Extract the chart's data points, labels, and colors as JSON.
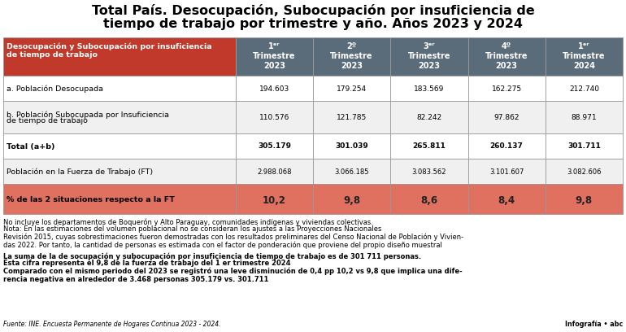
{
  "title_line1": "Total País. Desocupación, Subocupación por insuficiencia de",
  "title_line2": "tiempo de trabajo por trimestre y año. Años 2023 y 2024",
  "col_headers_line1": [
    "1ᵉʳ",
    "2º",
    "3ᵉʳ",
    "4º",
    "1ᵉʳ"
  ],
  "col_headers_line2": [
    "Trimestre",
    "Trimestre",
    "Trimestre",
    "Trimestre",
    "Trimestre"
  ],
  "col_headers_line3": [
    "2023",
    "2023",
    "2023",
    "2023",
    "2024"
  ],
  "row_labels": [
    "Desocupación y Subocupación por insuficiencia\nde tiempo de trabajo",
    "a. Población Desocupada",
    "b. Población Subocupada por Insuficiencia\nde tiempo de trabajo",
    "Total (a+b)",
    "Población en la Fuerza de Trabajo (FT)",
    "% de las 2 situaciones respecto a la FT"
  ],
  "data": [
    [
      "194.603",
      "179.254",
      "183.569",
      "162.275",
      "212.740"
    ],
    [
      "110.576",
      "121.785",
      "82.242",
      "97.862",
      "88.971"
    ],
    [
      "305.179",
      "301.039",
      "265.811",
      "260.137",
      "301.711"
    ],
    [
      "2.988.068",
      "3.066.185",
      "3.083.562",
      "3.101.607",
      "3.082.606"
    ],
    [
      "10,2",
      "9,8",
      "8,6",
      "8,4",
      "9,8"
    ]
  ],
  "header_bg": "#c0392b",
  "data_col_header_bg": "#5a6b7a",
  "alt_row_bg": "#f0f0f0",
  "normal_row_bg": "#ffffff",
  "percent_row_bg": "#e07060",
  "border_color": "#999999",
  "title_color": "#1a1a1a",
  "note1": "No incluye los departamentos de Boquerón y Alto Paraguay, comunidades indígenas y viviendas colectivas.",
  "note2": "Nota: En las estimaciones del volumen poblacional no se consideran los ajustes a las Proyecciones Nacionales",
  "note3": "Revisión 2015, cuyas sobrestimaciones fueron demostradas con los resultados preliminares del Censo Nacional de Población y Vivien-",
  "note4": "das 2022. Por tanto, la cantidad de personas es estimada con el factor de ponderación que proviene del propio diseño muestral",
  "bold_note1": "La suma de la de socupación y subocupación por insuficiencia de tiempo de trabajo es de 301 711 personas.",
  "bold_note2": "Esta cifra representa el 9,8 de la fuerza de trabajo del 1 er trimestre 2024",
  "bold_note3": "Comparado con el mismo periodo del 2023 se registró una leve disminución de 0,4 pp 10,2 vs 9,8 que implica una dife-",
  "bold_note4": "rencia negativa en alrededor de 3.468 personas 305.179 vs. 301.711",
  "source": "Fuente: INE. Encuesta Permanente de Hogares Continua 2023 - 2024.",
  "logo": "Infografía • abc"
}
